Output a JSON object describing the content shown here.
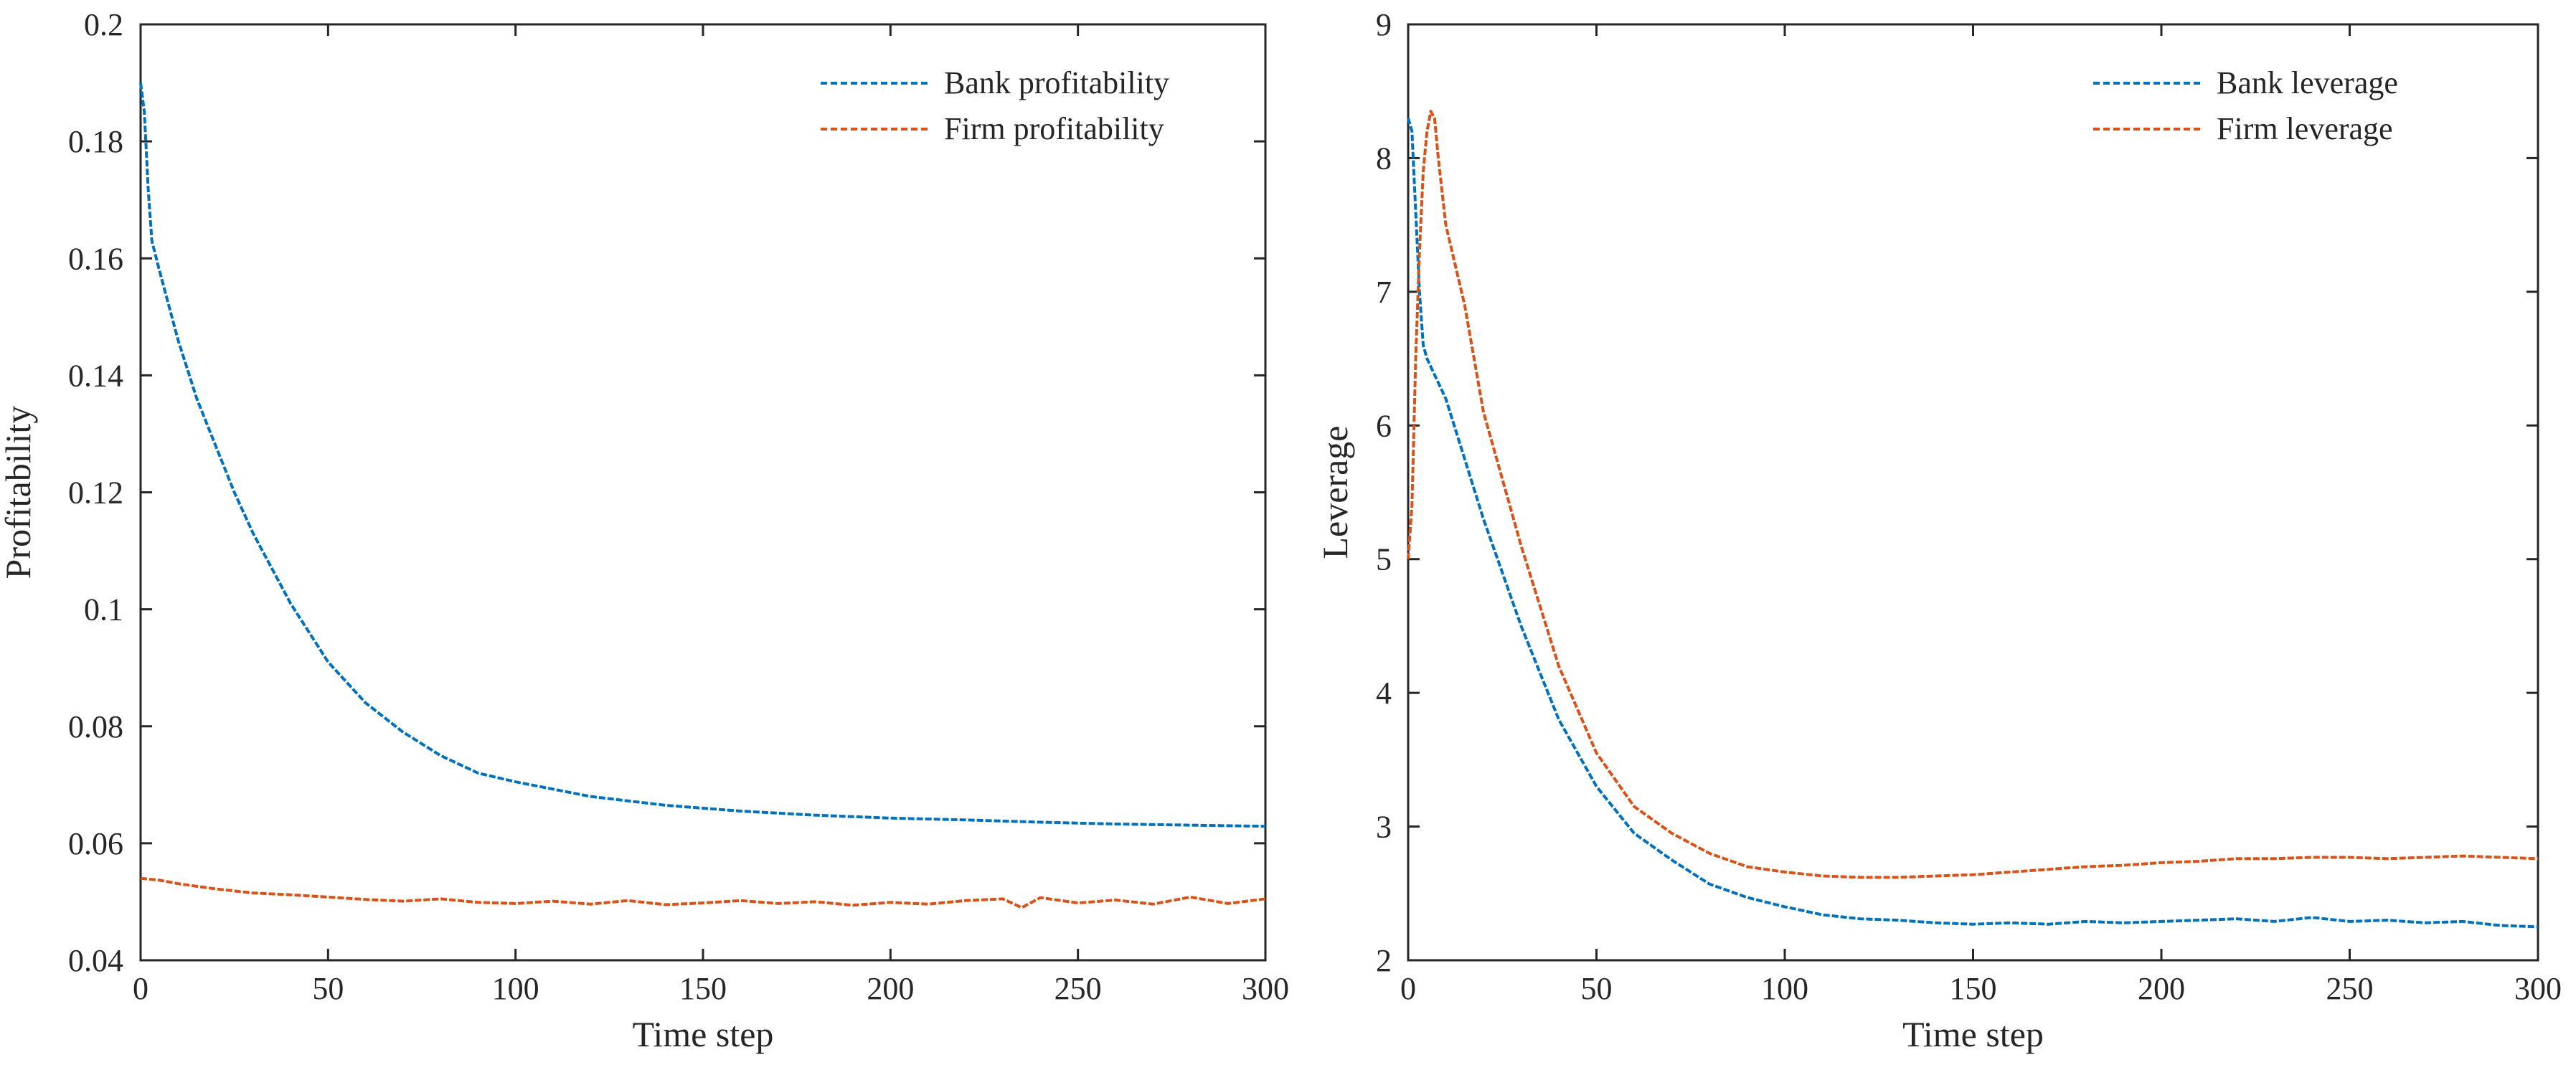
{
  "colors": {
    "bank": "#0072BD",
    "firm": "#D95319",
    "axis": "#262626"
  },
  "chart_data": [
    {
      "type": "line",
      "title": "",
      "xlabel": "Time step",
      "ylabel": "Profitability",
      "xlim": [
        0,
        300
      ],
      "ylim": [
        0.04,
        0.2
      ],
      "xticks": [
        0,
        50,
        100,
        150,
        200,
        250,
        300
      ],
      "xtick_labels": [
        "0",
        "50",
        "100",
        "150",
        "200",
        "250",
        "300"
      ],
      "yticks": [
        0.04,
        0.06,
        0.08,
        0.1,
        0.12,
        0.14,
        0.16,
        0.18,
        0.2
      ],
      "ytick_labels": [
        "0.04",
        "0.06",
        "0.08",
        "0.1",
        "0.12",
        "0.14",
        "0.16",
        "0.18",
        "0.2"
      ],
      "legend_position": "top-right",
      "series": [
        {
          "name": "Bank profitability",
          "color": "#0072BD",
          "x": [
            0,
            1,
            2,
            3,
            5,
            10,
            15,
            20,
            25,
            30,
            40,
            50,
            60,
            70,
            80,
            90,
            100,
            120,
            140,
            160,
            180,
            200,
            220,
            240,
            260,
            280,
            300
          ],
          "values": [
            0.19,
            0.185,
            0.172,
            0.163,
            0.158,
            0.146,
            0.136,
            0.128,
            0.12,
            0.113,
            0.101,
            0.091,
            0.084,
            0.079,
            0.075,
            0.072,
            0.0705,
            0.068,
            0.0665,
            0.0655,
            0.0648,
            0.0643,
            0.064,
            0.0636,
            0.0633,
            0.0631,
            0.0629
          ]
        },
        {
          "name": "Firm profitability",
          "color": "#D95319",
          "x": [
            0,
            5,
            10,
            20,
            30,
            40,
            50,
            60,
            70,
            80,
            90,
            100,
            110,
            120,
            130,
            140,
            150,
            160,
            170,
            180,
            190,
            200,
            210,
            220,
            230,
            235,
            240,
            250,
            260,
            270,
            280,
            290,
            300
          ],
          "values": [
            0.054,
            0.0537,
            0.0531,
            0.0522,
            0.0515,
            0.0512,
            0.0508,
            0.0504,
            0.0501,
            0.0505,
            0.0499,
            0.0497,
            0.0501,
            0.0496,
            0.0502,
            0.0495,
            0.0498,
            0.0502,
            0.0497,
            0.05,
            0.0494,
            0.0499,
            0.0496,
            0.0502,
            0.0505,
            0.049,
            0.0507,
            0.0498,
            0.0503,
            0.0496,
            0.0508,
            0.0497,
            0.0505
          ]
        }
      ]
    },
    {
      "type": "line",
      "title": "",
      "xlabel": "Time step",
      "ylabel": "Leverage",
      "xlim": [
        0,
        300
      ],
      "ylim": [
        2,
        9
      ],
      "xticks": [
        0,
        50,
        100,
        150,
        200,
        250,
        300
      ],
      "xtick_labels": [
        "0",
        "50",
        "100",
        "150",
        "200",
        "250",
        "300"
      ],
      "yticks": [
        2,
        3,
        4,
        5,
        6,
        7,
        8,
        9
      ],
      "ytick_labels": [
        "2",
        "3",
        "4",
        "5",
        "6",
        "7",
        "8",
        "9"
      ],
      "legend_position": "top-right",
      "series": [
        {
          "name": "Bank leverage",
          "color": "#0072BD",
          "x": [
            0,
            1,
            2,
            3,
            4,
            5,
            10,
            20,
            30,
            40,
            50,
            60,
            70,
            80,
            90,
            100,
            110,
            120,
            130,
            140,
            150,
            160,
            170,
            180,
            190,
            200,
            210,
            220,
            230,
            240,
            250,
            260,
            270,
            280,
            290,
            300
          ],
          "values": [
            8.3,
            8.2,
            7.6,
            7.0,
            6.6,
            6.5,
            6.2,
            5.3,
            4.5,
            3.8,
            3.3,
            2.95,
            2.75,
            2.57,
            2.47,
            2.4,
            2.34,
            2.31,
            2.3,
            2.28,
            2.27,
            2.28,
            2.27,
            2.29,
            2.28,
            2.29,
            2.3,
            2.31,
            2.29,
            2.32,
            2.29,
            2.3,
            2.28,
            2.29,
            2.26,
            2.25
          ]
        },
        {
          "name": "Firm leverage",
          "color": "#D95319",
          "x": [
            0,
            1,
            2,
            3,
            4,
            5,
            6,
            7,
            8,
            10,
            15,
            20,
            30,
            40,
            50,
            60,
            70,
            80,
            90,
            100,
            110,
            120,
            130,
            140,
            150,
            160,
            170,
            180,
            190,
            200,
            210,
            220,
            230,
            240,
            250,
            260,
            270,
            280,
            290,
            300
          ],
          "values": [
            5.0,
            5.4,
            6.5,
            7.3,
            7.9,
            8.2,
            8.35,
            8.3,
            8.0,
            7.5,
            6.9,
            6.1,
            5.1,
            4.2,
            3.55,
            3.15,
            2.95,
            2.8,
            2.7,
            2.66,
            2.63,
            2.62,
            2.62,
            2.63,
            2.64,
            2.66,
            2.68,
            2.7,
            2.71,
            2.73,
            2.74,
            2.76,
            2.76,
            2.77,
            2.77,
            2.76,
            2.77,
            2.78,
            2.77,
            2.76
          ]
        }
      ]
    }
  ]
}
